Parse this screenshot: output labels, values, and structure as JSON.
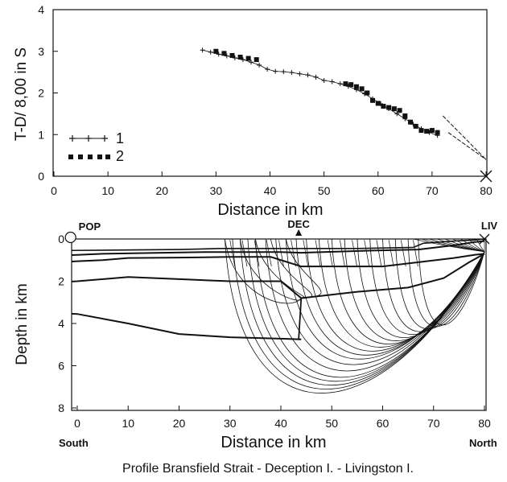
{
  "caption": "Profile Bransfield Strait - Deception I. - Livingston I.",
  "chart_data": [
    {
      "type": "scatter",
      "xlabel": "Distance in km",
      "ylabel": "T-D/ 8,00 in S",
      "xlim": [
        0,
        80
      ],
      "ylim": [
        0,
        4
      ],
      "x_ticks": [
        "0",
        "10",
        "20",
        "30",
        "40",
        "50",
        "60",
        "70",
        "80"
      ],
      "y_ticks": [
        "0",
        "1",
        "2",
        "3",
        "4"
      ],
      "grid": false,
      "legend_position": "lower-left",
      "series": [
        {
          "name": "1",
          "marker": "plus",
          "x": [
            27.5,
            29,
            30.5,
            32,
            33.5,
            35,
            36.5,
            38,
            39.5,
            41,
            42.5,
            44,
            45.5,
            47,
            48.5,
            50,
            51.5,
            53,
            54.5,
            56,
            57.5,
            59,
            60.5,
            62,
            63.5,
            65,
            66.5,
            68,
            69.5,
            71
          ],
          "y": [
            3.03,
            2.98,
            2.93,
            2.89,
            2.84,
            2.8,
            2.74,
            2.67,
            2.57,
            2.52,
            2.51,
            2.49,
            2.46,
            2.43,
            2.38,
            2.3,
            2.27,
            2.22,
            2.16,
            2.08,
            1.98,
            1.86,
            1.74,
            1.62,
            1.5,
            1.38,
            1.25,
            1.14,
            1.05,
            0.98
          ]
        },
        {
          "name": "2",
          "marker": "square",
          "x": [
            30,
            31.5,
            33,
            34.5,
            36,
            37.5,
            54,
            55,
            56,
            57,
            58,
            59,
            60,
            61,
            62,
            63,
            64,
            65,
            66,
            67,
            68,
            69,
            70,
            71
          ],
          "y": [
            3.0,
            2.95,
            2.9,
            2.86,
            2.83,
            2.8,
            2.22,
            2.2,
            2.15,
            2.1,
            2.0,
            1.82,
            1.75,
            1.68,
            1.65,
            1.62,
            1.58,
            1.45,
            1.3,
            1.2,
            1.1,
            1.08,
            1.1,
            1.05
          ]
        }
      ],
      "lines": [
        {
          "x": [
            72,
            80
          ],
          "y": [
            1.45,
            0.4
          ]
        },
        {
          "x": [
            73,
            80
          ],
          "y": [
            1.05,
            0.4
          ]
        }
      ],
      "source_marker": {
        "x": 80,
        "y": 0
      }
    },
    {
      "type": "diagram",
      "xlabel": "Distance in km",
      "ylabel": "Depth in km",
      "xlim": [
        0,
        80
      ],
      "ylim": [
        8,
        0
      ],
      "x_ticks": [
        "0",
        "10",
        "20",
        "30",
        "40",
        "50",
        "60",
        "70",
        "80"
      ],
      "y_ticks": [
        "0",
        "2",
        "4",
        "6",
        "8"
      ],
      "left_label": "South",
      "right_label": "North",
      "stations": [
        {
          "name": "POP",
          "x": -1,
          "symbol": "circle"
        },
        {
          "name": "DEC",
          "x": 43.5,
          "symbol": "triangle"
        },
        {
          "name": "LIV",
          "x": 80,
          "symbol": "cross"
        }
      ],
      "layers": [
        {
          "x": [
            -4,
            20,
            28,
            50,
            55,
            66,
            68,
            74,
            78,
            80
          ],
          "y": [
            0.55,
            0.5,
            0.45,
            0.45,
            0.45,
            0.4,
            0.2,
            0.1,
            0.05,
            0.0
          ]
        },
        {
          "x": [
            -4,
            0,
            5,
            25,
            30,
            35,
            40,
            44,
            58,
            67,
            74,
            78,
            80
          ],
          "y": [
            0.8,
            0.75,
            0.7,
            0.62,
            0.62,
            0.62,
            0.62,
            0.65,
            0.55,
            0.5,
            0.3,
            0.15,
            0.1
          ]
        },
        {
          "x": [
            -4,
            0,
            5,
            10,
            20,
            30,
            38,
            44,
            60,
            67,
            74,
            78,
            80
          ],
          "y": [
            1.1,
            1.05,
            1.0,
            0.9,
            0.88,
            0.85,
            0.85,
            1.3,
            1.3,
            1.1,
            0.9,
            0.75,
            0.7
          ]
        },
        {
          "x": [
            -4,
            0,
            10,
            20,
            30,
            40,
            44,
            55,
            65,
            72,
            77,
            80
          ],
          "y": [
            2.05,
            2.0,
            1.8,
            1.9,
            2.0,
            2.0,
            2.8,
            2.5,
            2.3,
            1.85,
            1.1,
            0.7
          ]
        },
        {
          "x": [
            -4,
            0,
            10,
            20,
            30,
            40,
            44
          ],
          "y": [
            3.5,
            3.55,
            4.0,
            4.5,
            4.65,
            4.72,
            4.75
          ]
        }
      ],
      "rays": {
        "receiver": {
          "x": 80,
          "y": 0.6
        },
        "max_depth": [
          7.0,
          6.75,
          6.5,
          6.25,
          6.0,
          5.6,
          5.2,
          4.85,
          4.6,
          4.35,
          4.1,
          3.9,
          3.7,
          3.5,
          3.3,
          3.12,
          2.95,
          2.8,
          2.7
        ],
        "start_x": [
          29,
          30.5,
          32,
          33.5,
          35,
          37,
          39,
          41,
          43,
          45,
          47.5,
          50,
          52.5,
          55,
          57.5,
          60,
          62.5,
          65,
          67
        ],
        "shallow": [
          {
            "start_x": 29,
            "depth": 3.5
          },
          {
            "start_x": 32,
            "depth": 3.2
          },
          {
            "start_x": 35,
            "depth": 2.9
          },
          {
            "start_x": 38,
            "depth": 2.8
          },
          {
            "start_x": 41,
            "depth": 2.7
          }
        ],
        "near_source": {
          "from_x": 66,
          "to_x": 80,
          "count": 10
        }
      }
    }
  ]
}
